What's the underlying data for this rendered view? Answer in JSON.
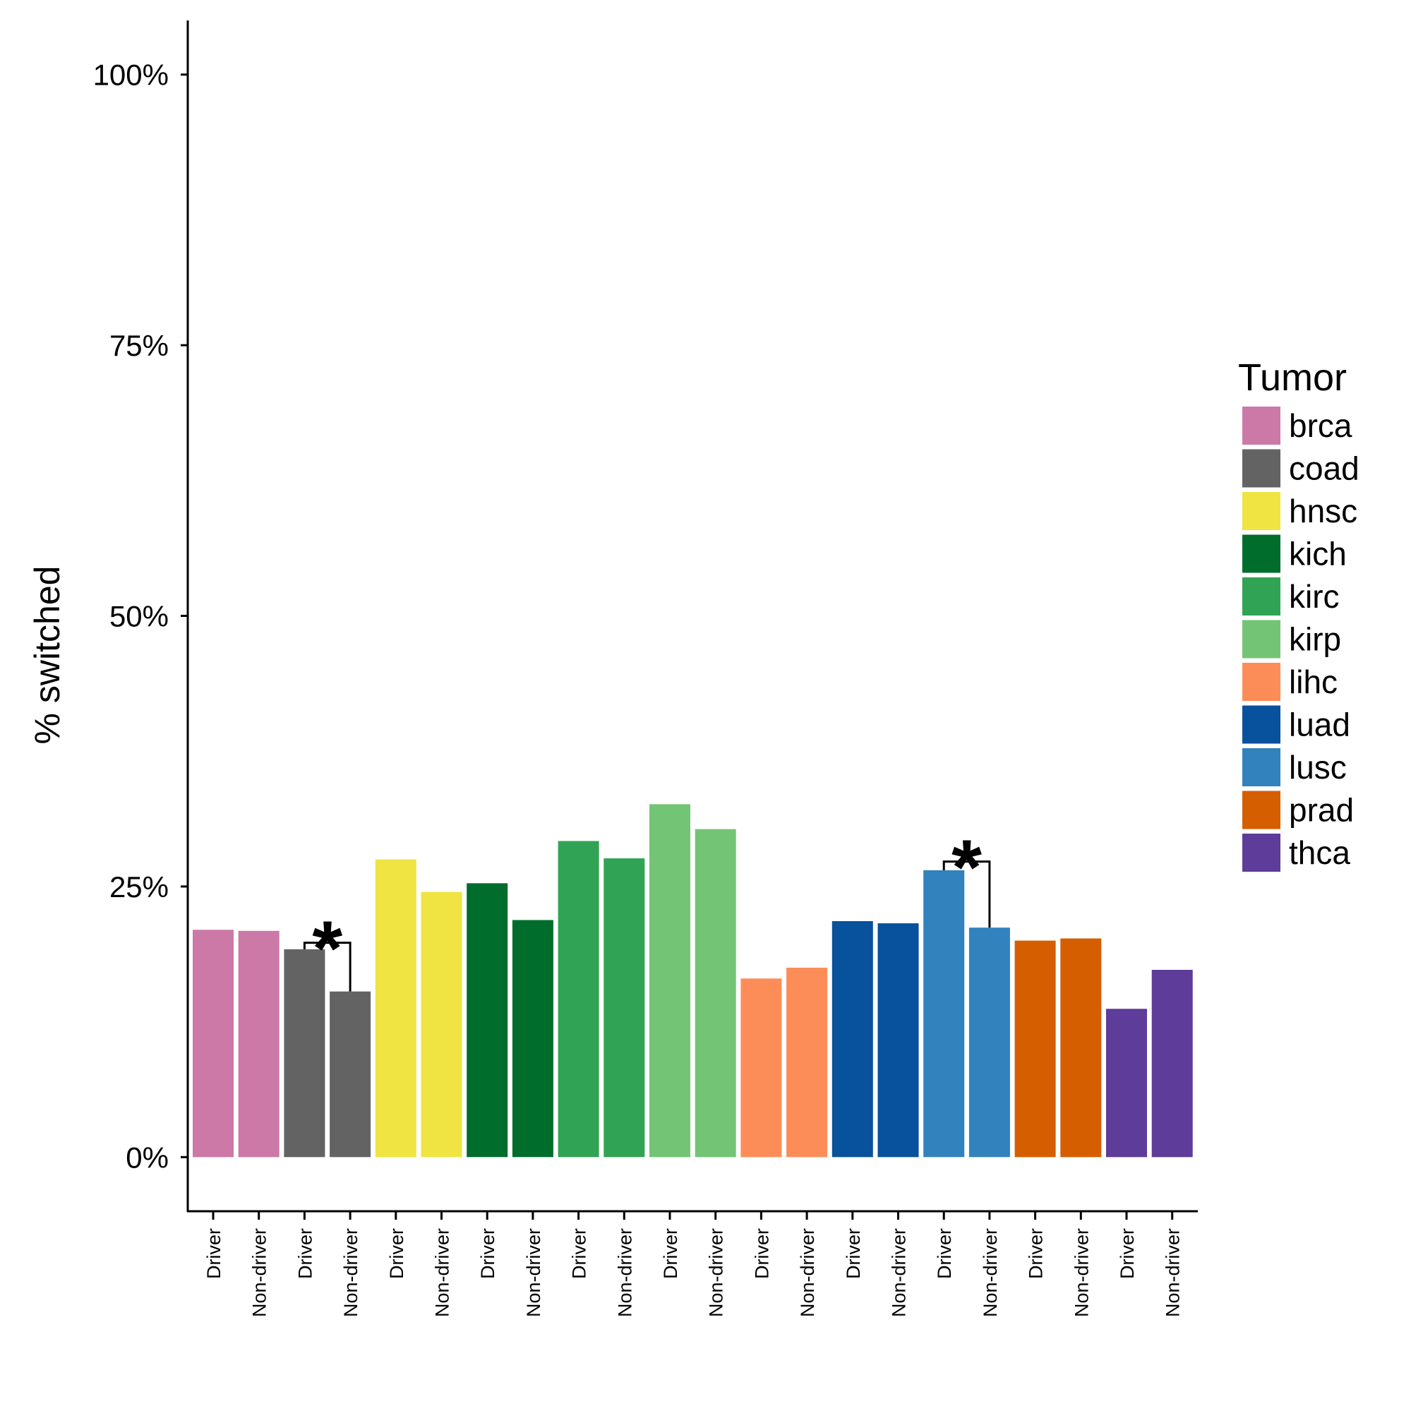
{
  "chart_data": {
    "type": "bar",
    "title": "",
    "xlabel": "",
    "ylabel": "% switched",
    "ylim": [
      -0.05,
      1.05
    ],
    "yticks": [
      0,
      0.25,
      0.5,
      0.75,
      1.0
    ],
    "ytick_labels": [
      "0%",
      "25%",
      "50%",
      "75%",
      "100%"
    ],
    "grid": false,
    "legend": {
      "title": "Tumor",
      "placement": "right",
      "entries": [
        "brca",
        "coad",
        "hnsc",
        "kich",
        "kirc",
        "kirp",
        "lihc",
        "luad",
        "lusc",
        "prad",
        "thca"
      ]
    },
    "colors": {
      "brca": "#CC79A7",
      "coad": "#636363",
      "hnsc": "#F0E442",
      "kich": "#006D2C",
      "kirc": "#31A354",
      "kirp": "#74C476",
      "lihc": "#FC8D59",
      "luad": "#08519C",
      "lusc": "#3182BD",
      "prad": "#D55E00",
      "thca": "#5E3C99"
    },
    "categories": [
      "Driver",
      "Non-driver",
      "Driver",
      "Non-driver",
      "Driver",
      "Non-driver",
      "Driver",
      "Non-driver",
      "Driver",
      "Non-driver",
      "Driver",
      "Non-driver",
      "Driver",
      "Non-driver",
      "Driver",
      "Non-driver",
      "Driver",
      "Non-driver",
      "Driver",
      "Non-driver",
      "Driver",
      "Non-driver"
    ],
    "bars": [
      {
        "tumor": "brca",
        "category": "Driver",
        "value": 0.21
      },
      {
        "tumor": "brca",
        "category": "Non-driver",
        "value": 0.209
      },
      {
        "tumor": "coad",
        "category": "Driver",
        "value": 0.192
      },
      {
        "tumor": "coad",
        "category": "Non-driver",
        "value": 0.153
      },
      {
        "tumor": "hnsc",
        "category": "Driver",
        "value": 0.275
      },
      {
        "tumor": "hnsc",
        "category": "Non-driver",
        "value": 0.245
      },
      {
        "tumor": "kich",
        "category": "Driver",
        "value": 0.253
      },
      {
        "tumor": "kich",
        "category": "Non-driver",
        "value": 0.219
      },
      {
        "tumor": "kirc",
        "category": "Driver",
        "value": 0.292
      },
      {
        "tumor": "kirc",
        "category": "Non-driver",
        "value": 0.276
      },
      {
        "tumor": "kirp",
        "category": "Driver",
        "value": 0.326
      },
      {
        "tumor": "kirp",
        "category": "Non-driver",
        "value": 0.303
      },
      {
        "tumor": "lihc",
        "category": "Driver",
        "value": 0.165
      },
      {
        "tumor": "lihc",
        "category": "Non-driver",
        "value": 0.175
      },
      {
        "tumor": "luad",
        "category": "Driver",
        "value": 0.218
      },
      {
        "tumor": "luad",
        "category": "Non-driver",
        "value": 0.216
      },
      {
        "tumor": "lusc",
        "category": "Driver",
        "value": 0.265
      },
      {
        "tumor": "lusc",
        "category": "Non-driver",
        "value": 0.212
      },
      {
        "tumor": "prad",
        "category": "Driver",
        "value": 0.2
      },
      {
        "tumor": "prad",
        "category": "Non-driver",
        "value": 0.202
      },
      {
        "tumor": "thca",
        "category": "Driver",
        "value": 0.137
      },
      {
        "tumor": "thca",
        "category": "Non-driver",
        "value": 0.173
      }
    ],
    "annotations": [
      {
        "text": "*",
        "tumor": "coad",
        "bracket_y": 0.198
      },
      {
        "text": "*",
        "tumor": "lusc",
        "bracket_y": 0.273
      }
    ]
  }
}
